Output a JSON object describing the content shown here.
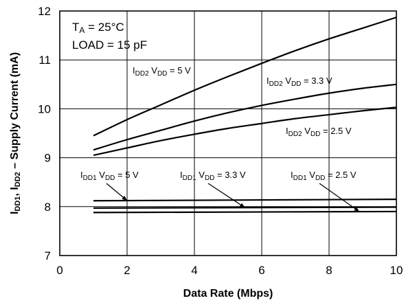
{
  "chart_data": {
    "type": "line",
    "xlabel": "Data Rate (Mbps)",
    "ylabel": [
      "I",
      "DD1",
      ", I",
      "DD2",
      " – Supply Current (mA)"
    ],
    "xlim": [
      0,
      10
    ],
    "ylim": [
      7,
      12
    ],
    "x_ticks": [
      "0",
      "2",
      "4",
      "6",
      "8",
      "10"
    ],
    "y_ticks": [
      "7",
      "8",
      "9",
      "10",
      "11",
      "12"
    ],
    "grid": true,
    "conditions": {
      "temp": [
        "T",
        "A",
        " = 25°C"
      ],
      "load": "LOAD = 15 pF"
    },
    "series": [
      {
        "name": [
          "I",
          "DD2",
          " V",
          "DD",
          " = 5 V"
        ],
        "x": [
          1,
          2,
          3,
          4,
          5,
          6,
          7,
          8,
          9,
          10
        ],
        "y": [
          9.45,
          9.78,
          10.08,
          10.38,
          10.66,
          10.93,
          11.19,
          11.43,
          11.65,
          11.87
        ]
      },
      {
        "name": [
          "I",
          "DD2",
          " V",
          "DD",
          " = 3.3 V"
        ],
        "x": [
          1,
          2,
          3,
          4,
          5,
          6,
          7,
          8,
          9,
          10
        ],
        "y": [
          9.16,
          9.37,
          9.56,
          9.75,
          9.92,
          10.07,
          10.2,
          10.32,
          10.42,
          10.5
        ]
      },
      {
        "name": [
          "I",
          "DD2",
          " V",
          "DD",
          " = 2.5 V"
        ],
        "x": [
          1,
          2,
          3,
          4,
          5,
          6,
          7,
          8,
          9,
          10
        ],
        "y": [
          9.05,
          9.2,
          9.35,
          9.48,
          9.6,
          9.7,
          9.8,
          9.88,
          9.96,
          10.03
        ]
      },
      {
        "name": [
          "I",
          "DD1",
          " V",
          "DD",
          " = 5 V"
        ],
        "x": [
          1,
          10
        ],
        "y": [
          8.12,
          8.15
        ]
      },
      {
        "name": [
          "I",
          "DD1",
          " V",
          "DD",
          " = 3.3 V"
        ],
        "x": [
          1,
          10
        ],
        "y": [
          7.97,
          7.99
        ]
      },
      {
        "name": [
          "I",
          "DD1",
          " V",
          "DD",
          " = 2.5 V"
        ],
        "x": [
          1,
          10
        ],
        "y": [
          7.88,
          7.9
        ]
      }
    ]
  }
}
